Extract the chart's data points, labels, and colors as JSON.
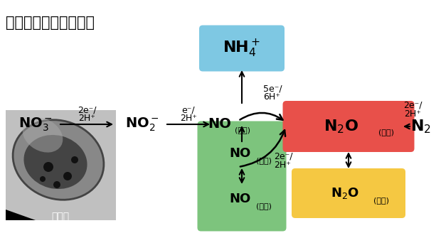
{
  "title": "脱窒に関わる代謝反応",
  "bg_color": "#ffffff",
  "box_nh4_color": "#7EC8E3",
  "box_no_green_color": "#7DC47D",
  "box_n2o_red_color": "#E8504A",
  "box_n2o_yellow_color": "#F5C842",
  "no3_label": "NO$_3^-$",
  "no2_label": "NO$_2^-$",
  "no_ads_label": "NO",
  "no_ads_sub": "(吸着)",
  "nh4_label": "NH$_4^+$",
  "no_water_label": "NO",
  "no_water_sub": "(水中)",
  "no_gas_label": "NO",
  "no_gas_sub": "(気体)",
  "n2o_ads_label": "N$_2$O",
  "n2o_ads_sub": "(吸着)",
  "n2_label": "N$_2$",
  "n2o_gas_label": "N$_2$O",
  "n2o_gas_sub": "(気体)",
  "bact_label": "脱窒菌",
  "arr1_label1": "2e⁻/",
  "arr1_label2": "2H⁺",
  "arr2_label1": "e⁻/",
  "arr2_label2": "2H⁺",
  "arr3_label1": "5e⁻/",
  "arr3_label2": "6H⁺",
  "arr4_label1": "2e⁻/",
  "arr4_label2": "2H⁺",
  "arr5_label1": "2e⁻/",
  "arr5_label2": "2H⁺"
}
